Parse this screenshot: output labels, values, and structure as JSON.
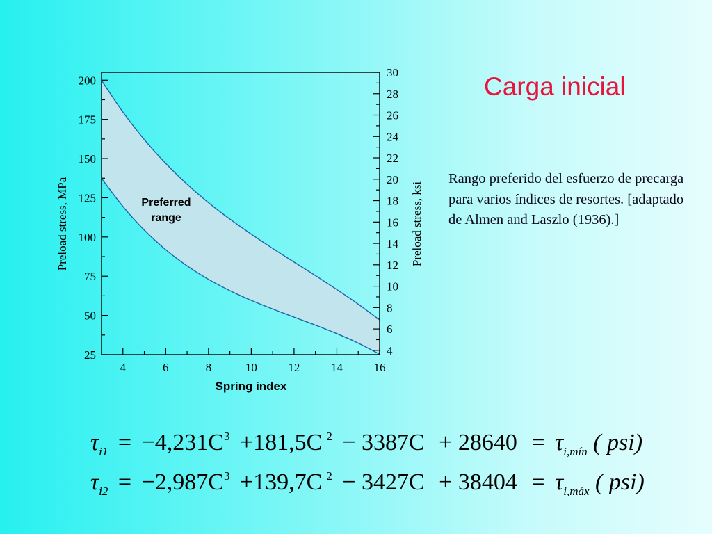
{
  "title": "Carga inicial",
  "caption": "Rango preferido del esfuerzo de precarga para varios índices de resortes. [adaptado de Almen and Laszlo (1936).]",
  "equations": [
    {
      "lhs": "τ",
      "lhs_sub": "i1",
      "eq1": "=",
      "c3": "−4,231C",
      "p3": "3",
      "c2": "+181,5C",
      "p2": "2",
      "c1": "− 3387C",
      "c0": "+ 28640",
      "eq2": "=",
      "rhs": "τ",
      "rhs_sub": "i,mín",
      "unit": "( psi)"
    },
    {
      "lhs": "τ",
      "lhs_sub": "i2",
      "eq1": "=",
      "c3": "−2,987C",
      "p3": "3",
      "c2": "+139,7C",
      "p2": "2",
      "c1": "− 3427C",
      "c0": "+ 38404",
      "eq2": "=",
      "rhs": "τ",
      "rhs_sub": "i,máx",
      "unit": "( psi)"
    }
  ],
  "colors": {
    "title": "#e8143c",
    "band": "#c2e4ec",
    "ink": "#000000"
  },
  "chart_data": {
    "type": "area",
    "xlabel": "Spring index",
    "ylabel": "Preload stress, MPa",
    "ylabel_right": "Preload stress, ksi",
    "xlim": [
      3,
      16
    ],
    "ylim": [
      25,
      205
    ],
    "ylim_right": [
      3.6,
      30.0
    ],
    "x_ticks": [
      4,
      6,
      8,
      10,
      12,
      14,
      16
    ],
    "y_ticks": [
      25,
      50,
      75,
      100,
      125,
      150,
      175,
      200
    ],
    "y_right_ticks": [
      4,
      6,
      8,
      10,
      12,
      14,
      16,
      18,
      20,
      22,
      24,
      26,
      28,
      30
    ],
    "annotation": "Preferred range",
    "annotation_lines": [
      "Preferred",
      "range"
    ],
    "x": [
      3,
      4,
      5,
      6,
      7,
      8,
      9,
      10,
      11,
      12,
      13,
      14,
      15,
      16
    ],
    "upper": [
      199.8,
      179.7,
      162.1,
      146.9,
      133.6,
      121.9,
      111.4,
      101.8,
      92.7,
      84.0,
      75.4,
      66.5,
      57.2,
      47.1
    ],
    "lower": [
      137.4,
      119.5,
      104.4,
      91.9,
      81.6,
      73.0,
      65.8,
      59.6,
      54.1,
      48.9,
      43.8,
      38.4,
      32.3,
      25.3
    ]
  }
}
